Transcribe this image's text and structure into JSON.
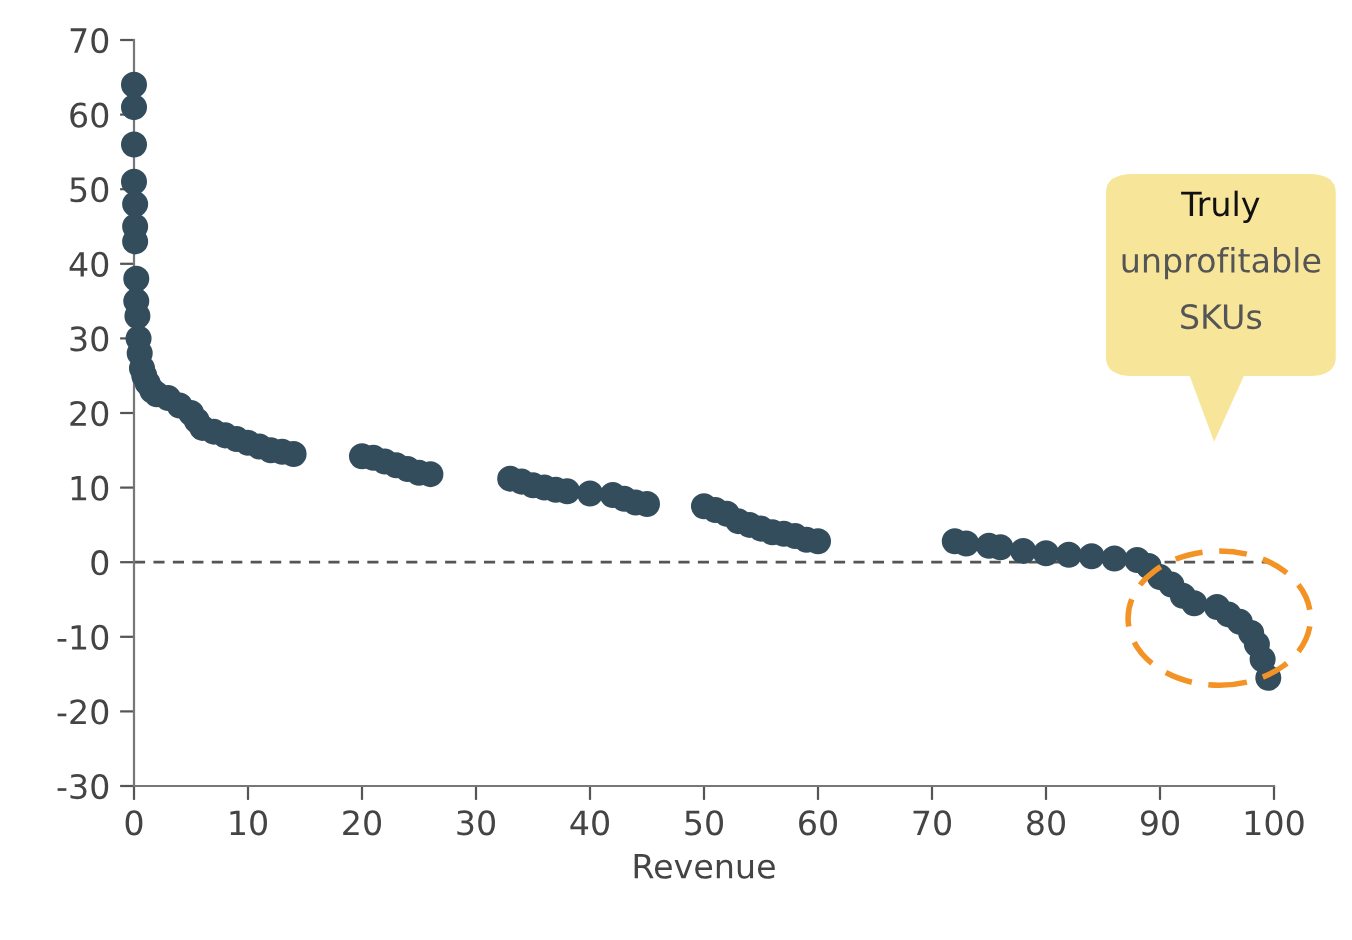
{
  "chart_data": {
    "type": "scatter",
    "xlabel": "Revenue",
    "x": [
      0,
      0,
      0,
      0,
      0.1,
      0.1,
      0.1,
      0.2,
      0.2,
      0.3,
      0.4,
      0.5,
      0.7,
      0.9,
      1.2,
      1.6,
      2,
      3,
      4,
      5,
      5.5,
      6,
      7,
      8,
      9,
      10,
      11,
      12,
      13,
      14,
      20,
      21,
      22,
      23,
      24,
      25,
      26,
      33,
      34,
      35,
      36,
      37,
      38,
      40,
      42,
      43,
      44,
      45,
      50,
      51,
      52,
      53,
      54,
      55,
      56,
      57,
      58,
      59,
      60,
      72,
      73,
      75,
      76,
      78,
      80,
      82,
      84,
      86,
      88,
      89,
      90,
      91,
      92,
      93,
      95,
      96,
      97,
      98,
      98.5,
      99,
      99.5
    ],
    "series": [
      {
        "color": "#344d5c",
        "values": [
          64,
          61,
          56,
          51,
          48,
          45,
          43,
          38,
          35,
          33,
          30,
          28,
          26,
          25,
          24,
          23,
          22.5,
          22,
          21,
          20,
          19,
          18,
          17.5,
          17,
          16.5,
          16,
          15.5,
          15,
          14.8,
          14.5,
          14.2,
          14,
          13.5,
          13,
          12.5,
          12,
          11.8,
          11.2,
          10.8,
          10.3,
          10,
          9.7,
          9.5,
          9.2,
          9,
          8.5,
          8,
          7.8,
          7.5,
          7,
          6.5,
          5.5,
          5,
          4.5,
          4,
          3.8,
          3.5,
          3,
          2.8,
          2.8,
          2.5,
          2.2,
          2,
          1.5,
          1.2,
          1,
          0.8,
          0.5,
          0.3,
          -0.5,
          -2,
          -3,
          -4.5,
          -5.5,
          -6,
          -7,
          -8,
          -9.5,
          -11,
          -13,
          -15.5
        ]
      }
    ],
    "marker": "circle",
    "xlim": [
      0,
      100
    ],
    "ylim": [
      -30,
      70
    ],
    "xticks": [
      0,
      10,
      20,
      30,
      40,
      50,
      60,
      70,
      80,
      90,
      100
    ],
    "yticks": [
      -30,
      -20,
      -10,
      0,
      10,
      20,
      30,
      40,
      50,
      60,
      70
    ],
    "grid": false,
    "ref_lines": [
      {
        "axis": "y",
        "value": 0,
        "color": "#555555",
        "line_style": "dashed"
      }
    ],
    "annotations": [
      "Truly",
      "unprofitable",
      "SKUs"
    ]
  }
}
